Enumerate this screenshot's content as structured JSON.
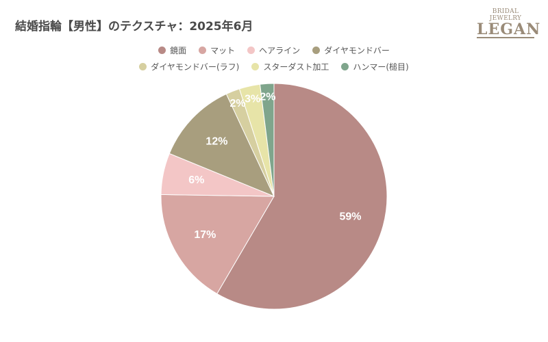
{
  "logo": {
    "sub": "BRIDAL JEWELRY",
    "main": "LEGAN"
  },
  "chart_data": {
    "type": "pie",
    "title": "結婚指輪【男性】のテクスチャ：2025年6月",
    "legend_position": "top",
    "categories": [
      "鏡面",
      "マット",
      "ヘアライン",
      "ダイヤモンドバー",
      "ダイヤモンドバー(ラフ)",
      "スターダスト加工",
      "ハンマー(槌目)"
    ],
    "values": [
      59,
      17,
      6,
      12,
      2,
      3,
      2
    ],
    "labels": [
      "59%",
      "17%",
      "6%",
      "12%",
      "2%",
      "3%",
      "2%"
    ],
    "colors": [
      "#b88a86",
      "#d7a6a2",
      "#f3c6c6",
      "#a89e7e",
      "#d6cfa0",
      "#e7e4a8",
      "#7fa58c"
    ]
  }
}
